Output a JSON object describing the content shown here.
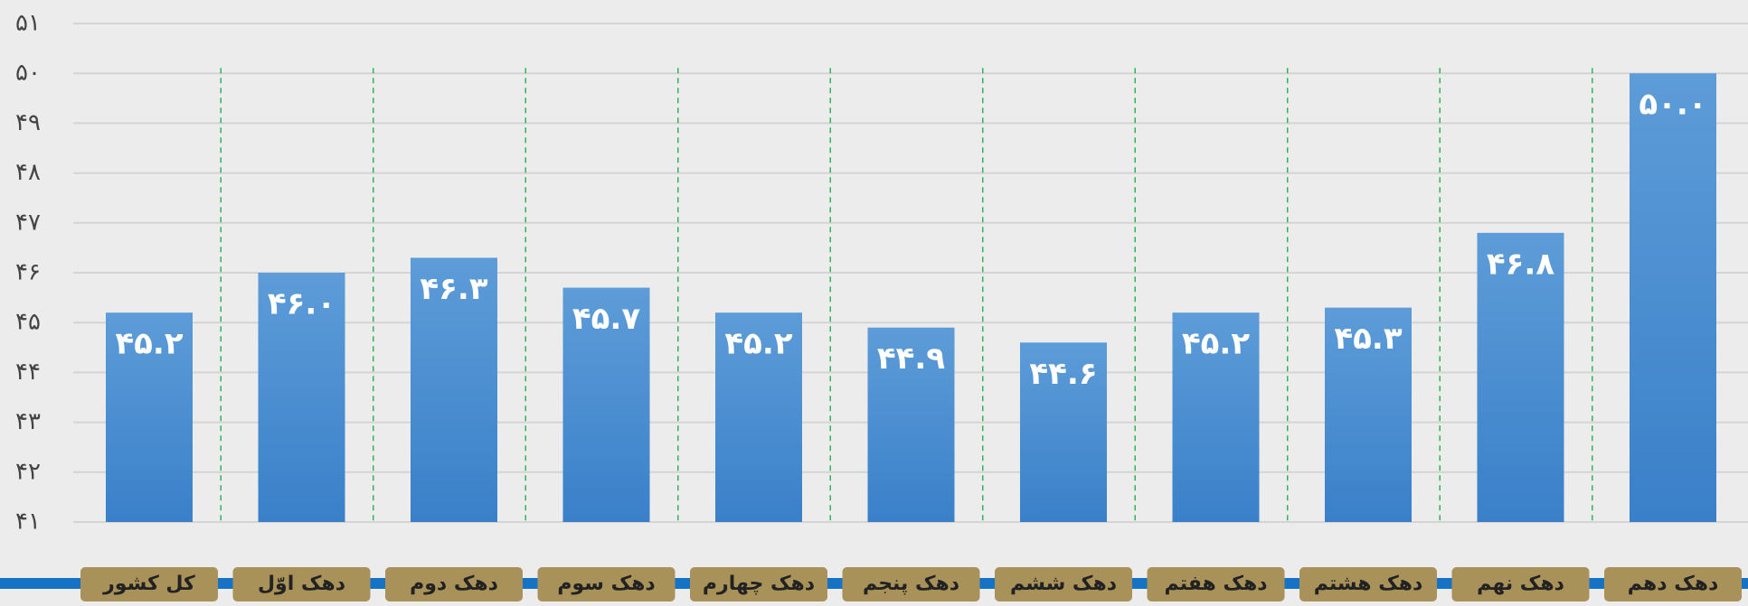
{
  "chart_data": {
    "type": "bar",
    "categories": [
      "کل کشور",
      "دهک اوّل",
      "دهک دوم",
      "دهک سوم",
      "دهک چهارم",
      "دهک پنجم",
      "دهک ششم",
      "دهک هفتم",
      "دهک هشتم",
      "دهک نهم",
      "دهک دهم"
    ],
    "values": [
      45.2,
      46.0,
      46.3,
      45.7,
      45.2,
      44.9,
      44.6,
      45.2,
      45.3,
      46.8,
      50.0
    ],
    "value_labels": [
      "۴۵.۲",
      "۴۶.۰",
      "۴۶.۳",
      "۴۵.۷",
      "۴۵.۲",
      "۴۴.۹",
      "۴۴.۶",
      "۴۵.۲",
      "۴۵.۳",
      "۴۶.۸",
      "۵۰.۰"
    ],
    "color": "#4a8fd4",
    "ylim": [
      41,
      51
    ],
    "yticks": [
      {
        "value": 41,
        "label": "۴۱"
      },
      {
        "value": 42,
        "label": "۴۲"
      },
      {
        "value": 43,
        "label": "۴۳"
      },
      {
        "value": 44,
        "label": "۴۴"
      },
      {
        "value": 45,
        "label": "۴۵"
      },
      {
        "value": 46,
        "label": "۴۶"
      },
      {
        "value": 47,
        "label": "۴۷"
      },
      {
        "value": 48,
        "label": "۴۸"
      },
      {
        "value": 49,
        "label": "۴۹"
      },
      {
        "value": 50,
        "label": "۵۰"
      },
      {
        "value": 51,
        "label": "۵۱"
      }
    ],
    "grid": true
  }
}
